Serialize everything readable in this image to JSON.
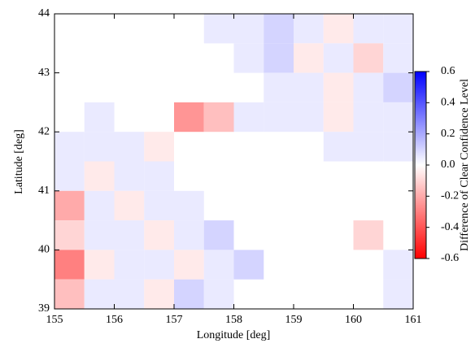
{
  "chart_data": {
    "type": "heatmap",
    "x_label": "Longitude [deg]",
    "y_label": "Latitude [deg]",
    "colorbar_label": "Difference of Clear Confidence Level",
    "xlim": [
      155,
      161
    ],
    "xticks": [
      155,
      156,
      157,
      158,
      159,
      160,
      161
    ],
    "ylim": [
      39,
      44
    ],
    "yticks": [
      39,
      40,
      41,
      42,
      43,
      44
    ],
    "x": [
      155,
      155.5,
      156,
      156.5,
      157,
      157.5,
      158,
      158.5,
      159,
      159.5,
      160,
      160.5
    ],
    "y": [
      43.5,
      43,
      42.5,
      42,
      41.5,
      41,
      40.5,
      40,
      39.5,
      39
    ],
    "cell_size": [
      0.5,
      0.5
    ],
    "z": [
      [
        null,
        null,
        null,
        null,
        null,
        0.05,
        0.05,
        0.1,
        0.05,
        -0.05,
        0.05,
        0.05
      ],
      [
        null,
        null,
        null,
        null,
        null,
        null,
        0.05,
        0.1,
        -0.05,
        0.05,
        -0.1,
        0.05
      ],
      [
        null,
        null,
        null,
        null,
        null,
        null,
        null,
        0.05,
        0.05,
        -0.05,
        0.05,
        0.1
      ],
      [
        null,
        0.05,
        null,
        null,
        -0.25,
        -0.15,
        0.05,
        0.05,
        0.05,
        -0.05,
        0.05,
        0.05
      ],
      [
        0.05,
        0.05,
        0.05,
        -0.05,
        null,
        null,
        null,
        null,
        null,
        0.05,
        0.05,
        0.05
      ],
      [
        0.05,
        -0.05,
        0.05,
        0.05,
        null,
        null,
        null,
        null,
        null,
        null,
        null,
        null
      ],
      [
        -0.2,
        0.05,
        -0.05,
        0.05,
        0.05,
        null,
        null,
        null,
        null,
        null,
        null,
        null
      ],
      [
        -0.1,
        0.05,
        0.05,
        -0.05,
        0.05,
        0.1,
        null,
        null,
        null,
        null,
        -0.1,
        null
      ],
      [
        -0.3,
        -0.05,
        0.05,
        0.05,
        -0.05,
        0.05,
        0.1,
        null,
        null,
        null,
        null,
        0.05
      ],
      [
        -0.15,
        0.05,
        0.05,
        -0.05,
        0.1,
        0.05,
        null,
        null,
        null,
        null,
        null,
        0.05
      ]
    ],
    "zlim": [
      -0.6,
      0.6
    ],
    "zticks": [
      0.6,
      0.4,
      0.2,
      {
        "value": 0,
        "label": "0.0"
      },
      -0.2,
      -0.4,
      -0.6
    ],
    "colorscale": [
      "#ff0000",
      "#ffffff",
      "#0000ff"
    ]
  }
}
